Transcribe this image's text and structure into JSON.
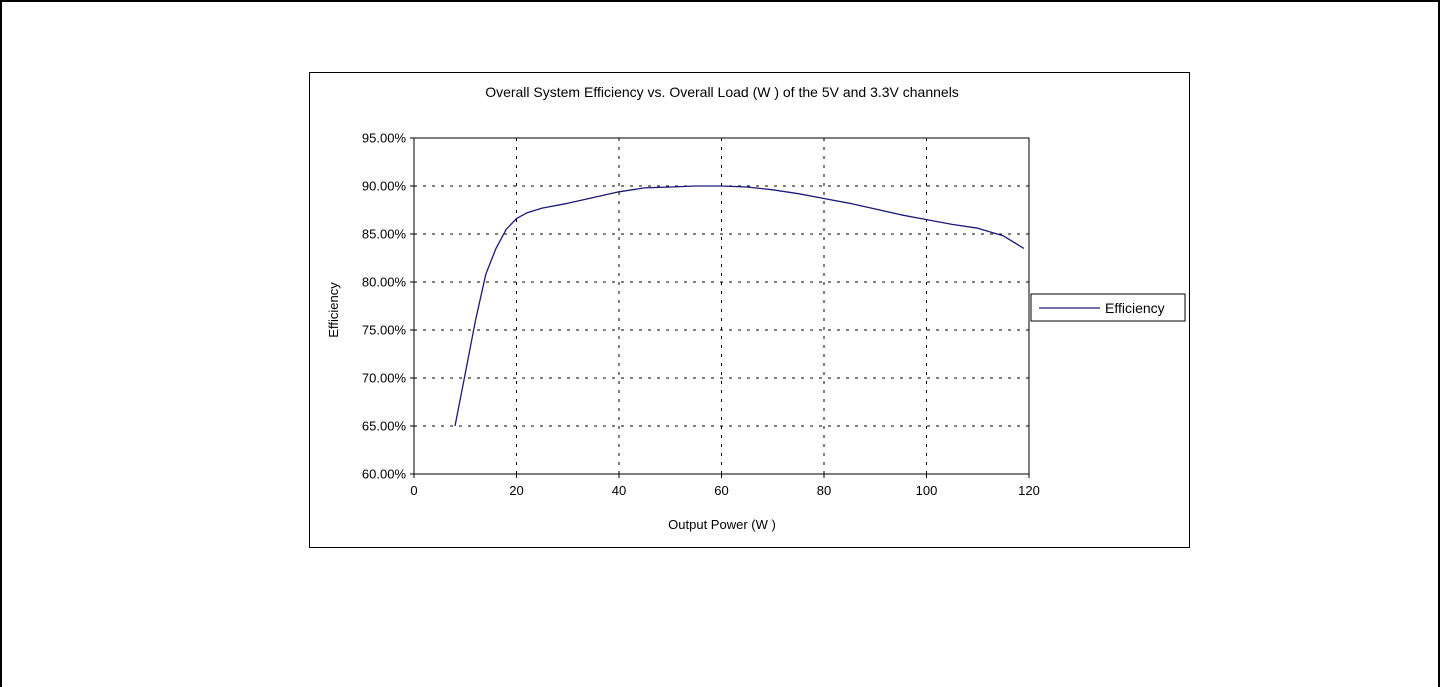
{
  "chart_data": {
    "type": "line",
    "title": "Overall System Efficiency vs. Overall Load (W ) of the 5V and 3.3V channels",
    "xlabel": "Output Power (W )",
    "ylabel": "Efficiency",
    "xlim": [
      0,
      120
    ],
    "ylim": [
      0.6,
      0.95
    ],
    "x_ticks": [
      0,
      20,
      40,
      60,
      80,
      100,
      120
    ],
    "x_tick_labels": [
      "0",
      "20",
      "40",
      "60",
      "80",
      "100",
      "120"
    ],
    "y_ticks": [
      0.6,
      0.65,
      0.7,
      0.75,
      0.8,
      0.85,
      0.9,
      0.95
    ],
    "y_tick_labels": [
      "60.00%",
      "65.00%",
      "70.00%",
      "75.00%",
      "80.00%",
      "85.00%",
      "90.00%",
      "95.00%"
    ],
    "grid": "dashed",
    "legend": {
      "position": "right",
      "entries": [
        "Efficiency"
      ]
    },
    "line_color": "#1a1a7a",
    "series": [
      {
        "name": "Efficiency",
        "x": [
          8,
          10,
          12,
          14,
          16,
          18,
          20,
          22,
          25,
          30,
          35,
          40,
          45,
          50,
          55,
          60,
          65,
          70,
          75,
          80,
          85,
          90,
          95,
          100,
          105,
          110,
          115,
          119
        ],
        "y": [
          0.65,
          0.705,
          0.76,
          0.808,
          0.835,
          0.855,
          0.866,
          0.872,
          0.877,
          0.882,
          0.888,
          0.894,
          0.898,
          0.899,
          0.9,
          0.9,
          0.899,
          0.896,
          0.892,
          0.887,
          0.882,
          0.876,
          0.87,
          0.865,
          0.86,
          0.856,
          0.848,
          0.835
        ]
      }
    ]
  }
}
